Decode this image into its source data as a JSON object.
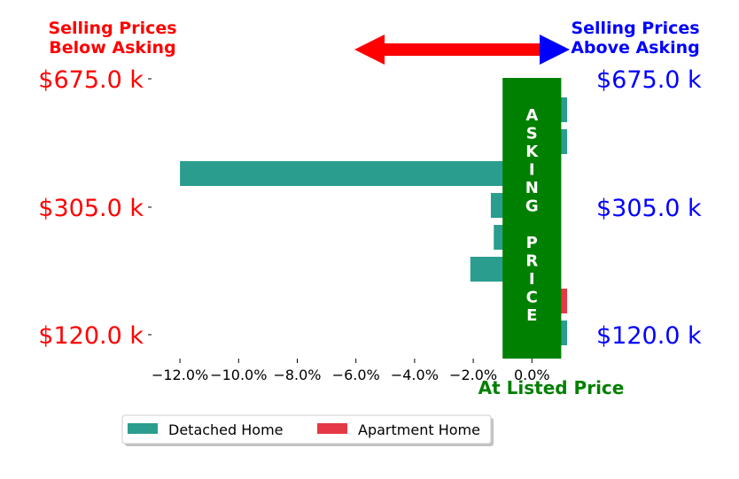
{
  "chart_data": {
    "type": "bar",
    "orientation": "horizontal",
    "xlim": [
      -13.0,
      1.2
    ],
    "x_ticks": [
      -12,
      -10,
      -8,
      -6,
      -4,
      -2,
      0
    ],
    "x_tick_labels": [
      "−12.0%",
      "−10.0%",
      "−8.0%",
      "−6.0%",
      "−4.0%",
      "−2.0%",
      "0.0%"
    ],
    "y_tick_labels": [
      "$675.0 k",
      "$305.0 k",
      "$120.0 k"
    ],
    "bars": [
      {
        "series": "Detached Home",
        "value": 1.2
      },
      {
        "series": "Detached Home",
        "value": 1.2
      },
      {
        "series": "Detached Home",
        "value": -12.0
      },
      {
        "series": "Detached Home",
        "value": -1.4
      },
      {
        "series": "Detached Home",
        "value": -1.3
      },
      {
        "series": "Detached Home",
        "value": -2.1
      },
      {
        "series": "Apartment Home",
        "value": 1.2
      },
      {
        "series": "Detached Home",
        "value": 1.2
      }
    ],
    "series": [
      {
        "name": "Detached Home",
        "color": "#2a9d8f"
      },
      {
        "name": "Apartment Home",
        "color": "#e63946"
      }
    ],
    "asking_band": {
      "label_top": "ASKING",
      "label_bottom": "PRICE",
      "color": "#008000",
      "x_range": [
        -1.0,
        1.0
      ]
    },
    "annotations": {
      "left_title": [
        "Selling Prices",
        "Below Asking"
      ],
      "right_title": [
        "Selling Prices",
        "Above Asking"
      ],
      "bottom_label": "At Listed Price"
    },
    "colors": {
      "left_labels": "#ff0000",
      "right_labels": "#0000ff",
      "arrow": "#ff0000",
      "arrow_right_head": "#0000ff"
    },
    "legend": {
      "placement": "bottom-left",
      "entries": [
        "Detached Home",
        "Apartment Home"
      ]
    },
    "grid": false
  }
}
